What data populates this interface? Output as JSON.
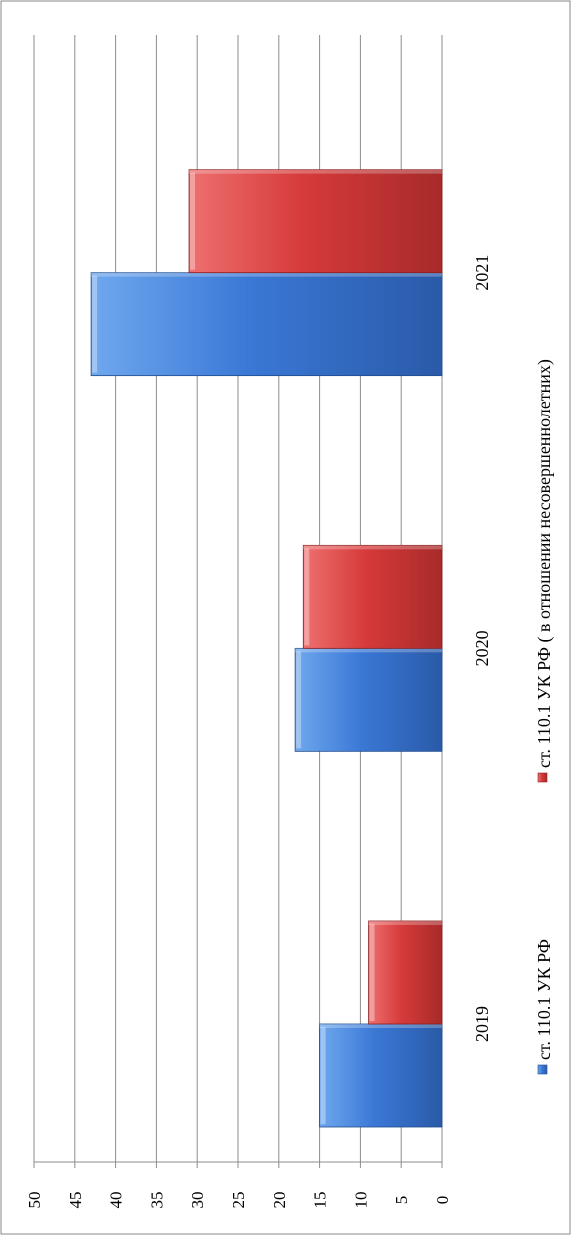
{
  "chart_data": {
    "type": "bar",
    "orientation": "vertical",
    "categories": [
      "2019",
      "2020",
      "2021"
    ],
    "series": [
      {
        "name": "ст. 110.1 УК РФ",
        "values": [
          15,
          18,
          43
        ],
        "color": "#3a78d6"
      },
      {
        "name": "ст. 110.1 УК РФ ( в отношении несовершеннолетних)",
        "values": [
          9,
          17,
          31
        ],
        "color": "#d63a3a"
      }
    ],
    "ylim": [
      0,
      50
    ],
    "yticks": [
      0,
      5,
      10,
      15,
      20,
      25,
      30,
      35,
      40,
      45,
      50
    ],
    "grid": true,
    "legend_position": "bottom",
    "title": "",
    "xlabel": "",
    "ylabel": ""
  }
}
